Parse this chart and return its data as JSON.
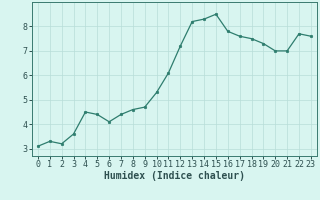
{
  "x": [
    0,
    1,
    2,
    3,
    4,
    5,
    6,
    7,
    8,
    9,
    10,
    11,
    12,
    13,
    14,
    15,
    16,
    17,
    18,
    19,
    20,
    21,
    22,
    23
  ],
  "y": [
    3.1,
    3.3,
    3.2,
    3.6,
    4.5,
    4.4,
    4.1,
    4.4,
    4.6,
    4.7,
    5.3,
    6.1,
    7.2,
    8.2,
    8.3,
    8.5,
    7.8,
    7.6,
    7.5,
    7.3,
    7.0,
    7.0,
    7.7,
    7.6
  ],
  "line_color": "#2e7d6e",
  "marker": "o",
  "marker_size": 1.8,
  "linewidth": 0.9,
  "background_color": "#d8f5f0",
  "grid_color": "#b8ddd8",
  "xlabel": "Humidex (Indice chaleur)",
  "xlabel_fontsize": 7,
  "tick_fontsize": 6,
  "xlim": [
    -0.5,
    23.5
  ],
  "ylim": [
    2.7,
    9.0
  ],
  "yticks": [
    3,
    4,
    5,
    6,
    7,
    8
  ],
  "xticks": [
    0,
    1,
    2,
    3,
    4,
    5,
    6,
    7,
    8,
    9,
    10,
    11,
    12,
    13,
    14,
    15,
    16,
    17,
    18,
    19,
    20,
    21,
    22,
    23
  ],
  "spine_color": "#3a7a70",
  "tick_color": "#2e5050"
}
